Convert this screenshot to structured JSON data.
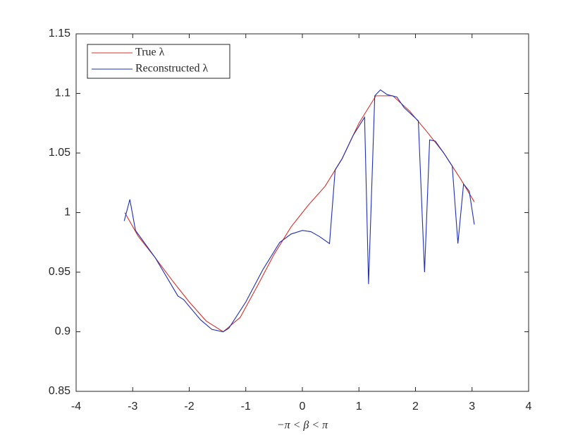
{
  "chart_data": {
    "type": "line",
    "x_label": "−π < β < π",
    "xlim": [
      -4,
      4
    ],
    "xticks": [
      -4,
      -3,
      -2,
      -1,
      0,
      1,
      2,
      3,
      4
    ],
    "ylim": [
      0.85,
      1.15
    ],
    "yticks": [
      0.85,
      0.9,
      0.95,
      1,
      1.05,
      1.1,
      1.15
    ],
    "legend_position": "upper-left",
    "series": [
      {
        "name": "True λ",
        "color": "#d9302b",
        "x": [
          -3.14,
          -2.9,
          -2.6,
          -2.3,
          -2.0,
          -1.7,
          -1.4,
          -1.1,
          -0.8,
          -0.5,
          -0.2,
          0.1,
          0.4,
          0.7,
          1.0,
          1.3,
          1.6,
          1.9,
          2.2,
          2.5,
          2.8,
          3.04
        ],
        "values": [
          1.0,
          0.98,
          0.962,
          0.943,
          0.925,
          0.909,
          0.9,
          0.912,
          0.938,
          0.965,
          0.988,
          1.006,
          1.022,
          1.045,
          1.075,
          1.098,
          1.098,
          1.085,
          1.068,
          1.05,
          1.028,
          1.009
        ]
      },
      {
        "name": "Reconstructed λ",
        "color": "#1f2fb8",
        "x": [
          -3.15,
          -3.05,
          -2.95,
          -2.6,
          -2.2,
          -2.1,
          -1.8,
          -1.6,
          -1.4,
          -1.3,
          -1.0,
          -0.7,
          -0.4,
          -0.2,
          0.0,
          0.15,
          0.3,
          0.48,
          0.58,
          0.7,
          0.9,
          1.1,
          1.17,
          1.28,
          1.38,
          1.5,
          1.67,
          1.8,
          2.05,
          2.16,
          2.25,
          2.35,
          2.5,
          2.65,
          2.75,
          2.85,
          2.95,
          3.04
        ],
        "values": [
          0.993,
          1.011,
          0.985,
          0.962,
          0.93,
          0.927,
          0.91,
          0.902,
          0.9,
          0.903,
          0.925,
          0.952,
          0.975,
          0.982,
          0.985,
          0.984,
          0.98,
          0.974,
          1.036,
          1.045,
          1.065,
          1.08,
          0.94,
          1.098,
          1.103,
          1.099,
          1.097,
          1.088,
          1.077,
          0.95,
          1.061,
          1.06,
          1.05,
          1.039,
          0.974,
          1.024,
          1.018,
          0.99
        ]
      }
    ]
  }
}
